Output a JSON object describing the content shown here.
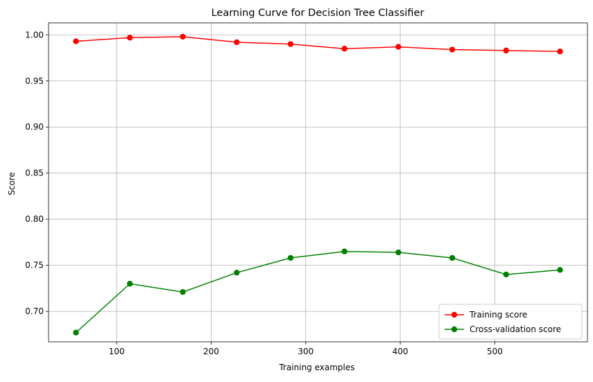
{
  "chart_data": {
    "type": "line",
    "title": "Learning Curve for Decision Tree Classifier",
    "xlabel": "Training examples",
    "ylabel": "Score",
    "xlim": [
      28,
      598
    ],
    "ylim": [
      0.667,
      1.013
    ],
    "x_ticks": [
      100,
      200,
      300,
      400,
      500
    ],
    "y_ticks": [
      0.7,
      0.75,
      0.8,
      0.85,
      0.9,
      0.95,
      1.0
    ],
    "x_tick_labels": [
      "100",
      "200",
      "300",
      "400",
      "500"
    ],
    "y_tick_labels": [
      "0.70",
      "0.75",
      "0.80",
      "0.85",
      "0.90",
      "0.95",
      "1.00"
    ],
    "grid": true,
    "legend_position": "lower-right",
    "x": [
      57,
      114,
      170,
      227,
      284,
      341,
      398,
      455,
      512,
      569
    ],
    "series": [
      {
        "name": "Training score",
        "color": "#ff0000",
        "marker": "circle",
        "values": [
          0.993,
          0.997,
          0.998,
          0.992,
          0.99,
          0.985,
          0.987,
          0.984,
          0.983,
          0.982
        ]
      },
      {
        "name": "Cross-validation score",
        "color": "#008000",
        "marker": "circle",
        "values": [
          0.677,
          0.73,
          0.721,
          0.742,
          0.758,
          0.765,
          0.764,
          0.758,
          0.74,
          0.745
        ]
      }
    ]
  }
}
